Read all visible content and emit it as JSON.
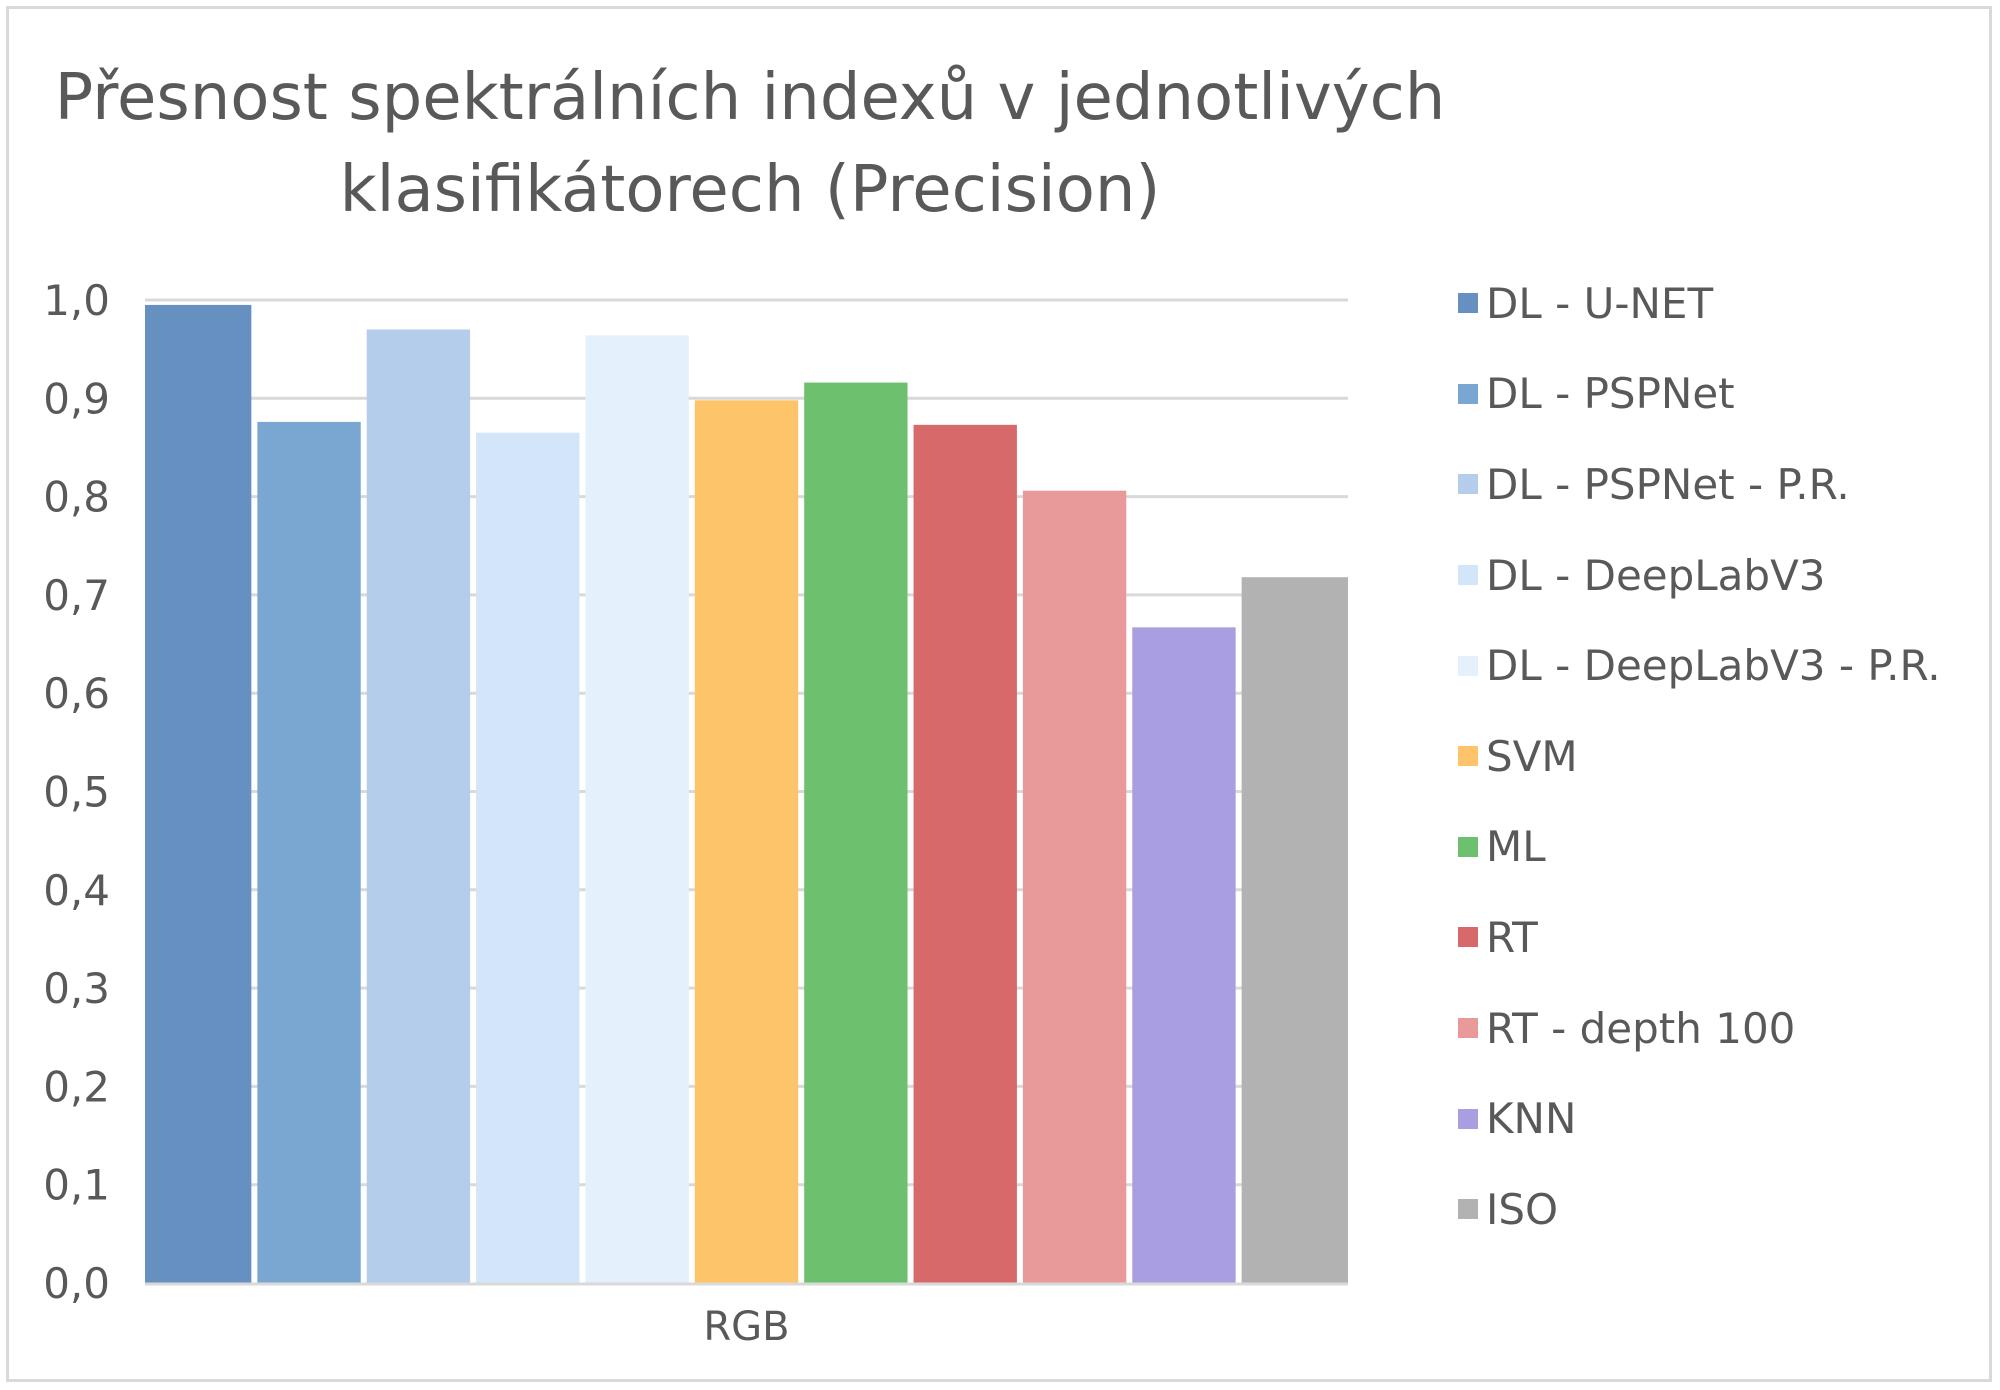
{
  "chart_data": {
    "type": "bar",
    "title": "Přesnost spektrálních indexů v jednotlivých klasifikátorech (Precision)",
    "categories": [
      "RGB"
    ],
    "ylim": [
      0,
      1.0
    ],
    "yticks": [
      "0,0",
      "0,1",
      "0,2",
      "0,3",
      "0,4",
      "0,5",
      "0,6",
      "0,7",
      "0,8",
      "0,9",
      "1,0"
    ],
    "grid": true,
    "legend_position": "right",
    "series": [
      {
        "name": "DL - U-NET",
        "values": [
          0.995
        ],
        "color": "#6690c0"
      },
      {
        "name": "DL - PSPNet",
        "values": [
          0.876
        ],
        "color": "#79a7d1"
      },
      {
        "name": "DL - PSPNet - P.R.",
        "values": [
          0.97
        ],
        "color": "#b3cdea"
      },
      {
        "name": "DL - DeepLabV3",
        "values": [
          0.865
        ],
        "color": "#d3e5f8"
      },
      {
        "name": "DL - DeepLabV3 - P.R.",
        "values": [
          0.964
        ],
        "color": "#e4f0fb"
      },
      {
        "name": "SVM",
        "values": [
          0.898
        ],
        "color": "#fec46a"
      },
      {
        "name": "ML",
        "values": [
          0.916
        ],
        "color": "#6dc06e"
      },
      {
        "name": "RT",
        "values": [
          0.873
        ],
        "color": "#d8696a"
      },
      {
        "name": "RT - depth 100",
        "values": [
          0.806
        ],
        "color": "#e89a9b"
      },
      {
        "name": "KNN",
        "values": [
          0.667
        ],
        "color": "#a99fe0"
      },
      {
        "name": "ISO",
        "values": [
          0.718
        ],
        "color": "#b2b2b2"
      }
    ]
  }
}
